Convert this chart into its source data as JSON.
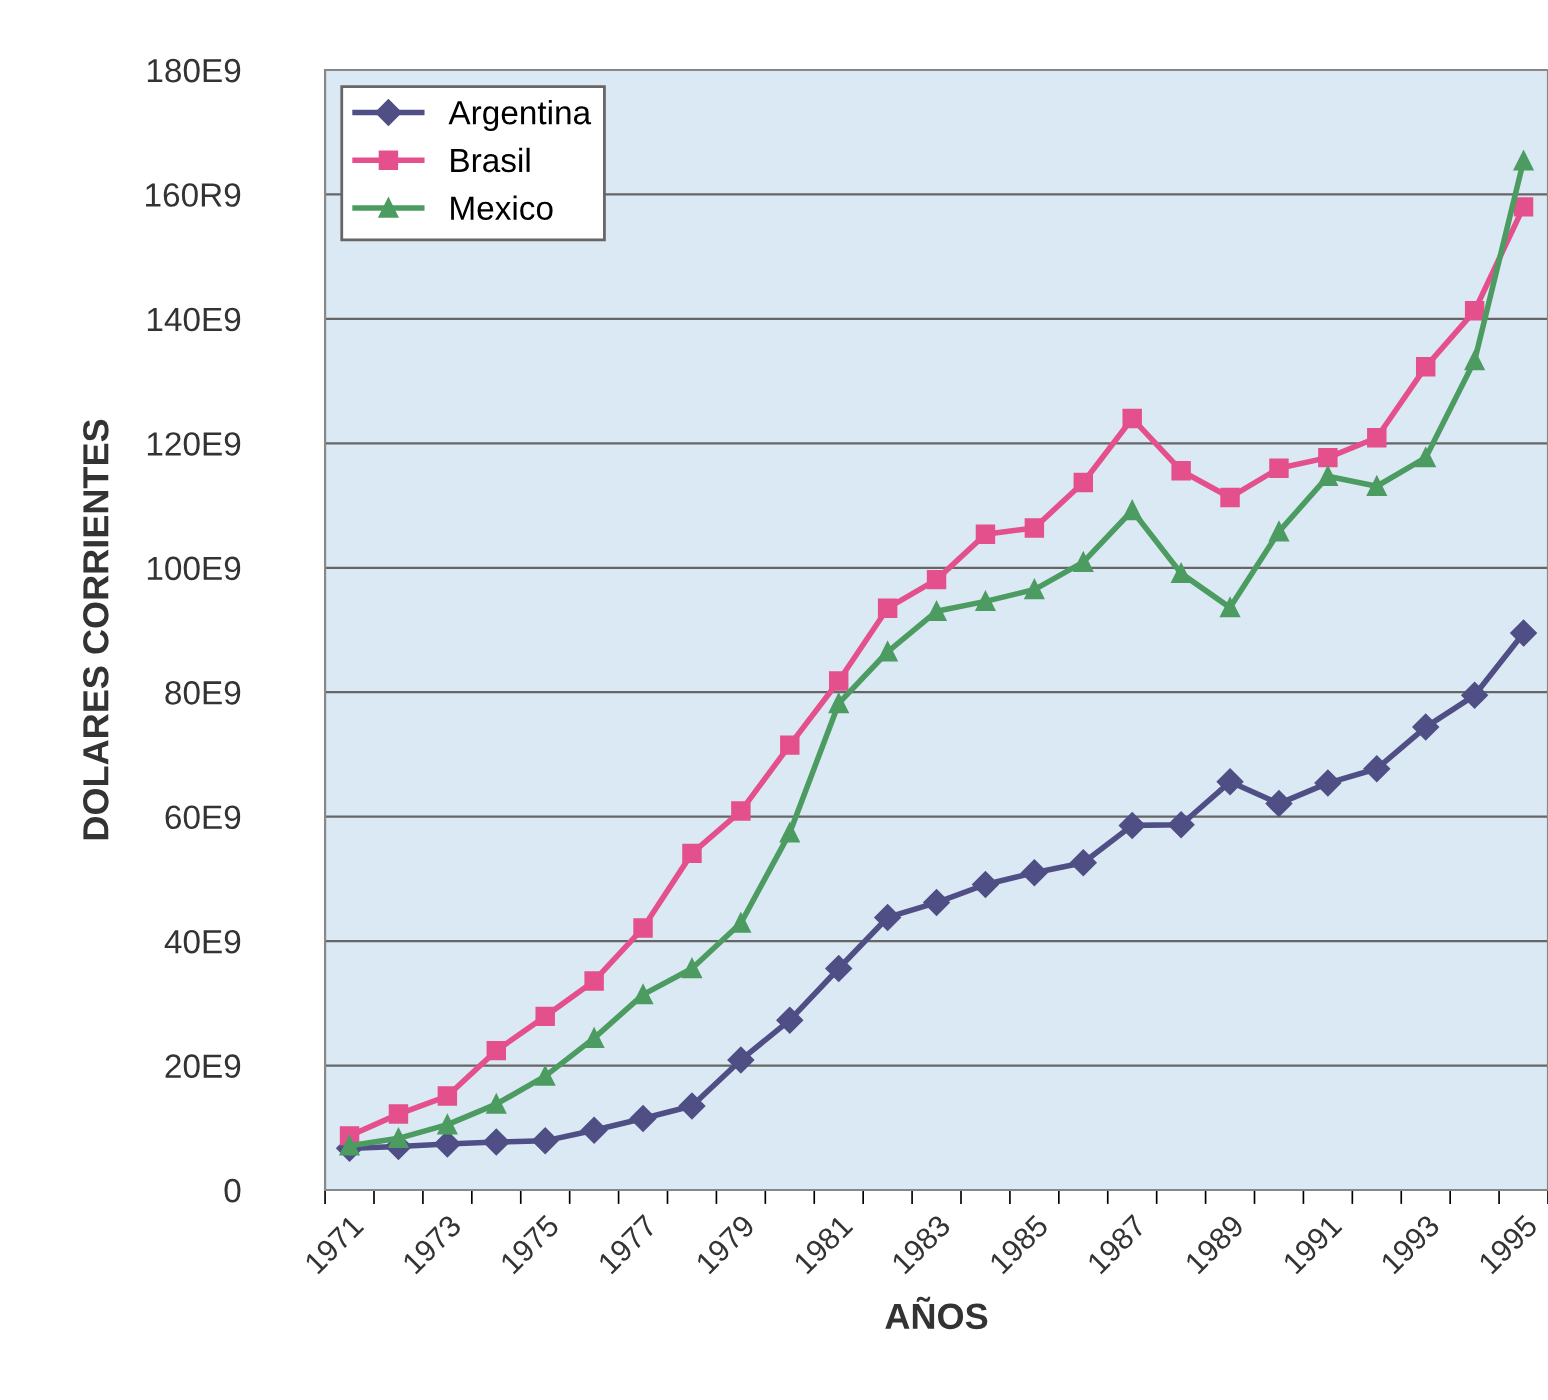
{
  "chart_data": {
    "type": "line",
    "xlabel": "AÑOS",
    "ylabel": "DOLARES CORRIENTES",
    "categories": [
      "1971",
      null,
      "1973",
      null,
      "1975",
      null,
      "1977",
      null,
      "1979",
      null,
      "1981",
      null,
      "1983",
      null,
      "1985",
      null,
      "1987",
      null,
      "1989",
      null,
      "1991",
      null,
      "1993",
      null,
      "1995"
    ],
    "series": [
      {
        "name": "Argentina",
        "color": "#4f4f86",
        "marker": "diamond",
        "values": [
          6700000000.0,
          7000000000.0,
          7400000000.0,
          7700000000.0,
          7900000000.0,
          9600000000.0,
          11500000000.0,
          13500000000.0,
          20900000000.0,
          27300000000.0,
          35600000000.0,
          43800000000.0,
          46200000000.0,
          49100000000.0,
          51000000000.0,
          52600000000.0,
          58600000000.0,
          58700000000.0,
          65600000000.0,
          62100000000.0,
          65400000000.0,
          67700000000.0,
          74400000000.0,
          79500000000.0,
          89500000000.0
        ]
      },
      {
        "name": "Brasil",
        "color": "#e4508c",
        "marker": "square",
        "values": [
          8700000000.0,
          12200000000.0,
          15100000000.0,
          22400000000.0,
          27900000000.0,
          33600000000.0,
          42100000000.0,
          54100000000.0,
          60900000000.0,
          71500000000.0,
          81800000000.0,
          93500000000.0,
          98100000000.0,
          105400000000.0,
          106400000000.0,
          113700000000.0,
          124000000000.0,
          115600000000.0,
          111300000000.0,
          116000000000.0,
          117700000000.0,
          120900000000.0,
          132300000000.0,
          141300000000.0,
          158000000000.0
        ]
      },
      {
        "name": "Mexico",
        "color": "#4c9c62",
        "marker": "triangle",
        "values": [
          7100000000.0,
          8300000000.0,
          10500000000.0,
          13800000000.0,
          18300000000.0,
          24400000000.0,
          31400000000.0,
          35600000000.0,
          42900000000.0,
          57400000000.0,
          78200000000.0,
          86500000000.0,
          93000000000.0,
          94600000000.0,
          96500000000.0,
          100900000000.0,
          109200000000.0,
          99100000000.0,
          93600000000.0,
          105800000000.0,
          114700000000.0,
          113100000000.0,
          117700000000.0,
          133300000000.0,
          165400000000.0
        ]
      }
    ],
    "ylim": [
      0,
      180000000000.0
    ],
    "yticks": [
      0,
      {
        "value": 20000000000.0,
        "label": "20E9"
      },
      {
        "value": 40000000000.0,
        "label": "40E9"
      },
      {
        "value": 60000000000.0,
        "label": "60E9"
      },
      {
        "value": 80000000000.0,
        "label": "80E9"
      },
      {
        "value": 100000000000.0,
        "label": "100E9"
      },
      {
        "value": 120000000000.0,
        "label": "120E9"
      },
      {
        "value": 140000000000.0,
        "label": "140E9"
      },
      {
        "value": 160000000000.0,
        "label": "160R9"
      },
      {
        "value": 180000000000.0,
        "label": "180E9"
      }
    ],
    "grid": "y",
    "legend": "top left",
    "line_style": "solid"
  }
}
